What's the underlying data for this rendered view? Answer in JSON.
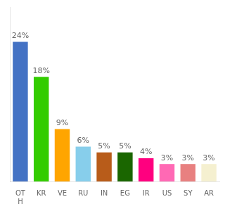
{
  "chart_data": {
    "type": "bar",
    "categories": [
      "OT\nH",
      "KR",
      "VE",
      "RU",
      "IN",
      "EG",
      "IR",
      "US",
      "SY",
      "AR"
    ],
    "values": [
      24,
      18,
      9,
      6,
      5,
      5,
      4,
      3,
      3,
      3
    ],
    "value_labels": [
      "24%",
      "18%",
      "9%",
      "6%",
      "5%",
      "5%",
      "4%",
      "3%",
      "3%",
      "3%"
    ],
    "data_labels": true,
    "colors": [
      "#4472c4",
      "#33cc00",
      "#ffa500",
      "#87ceeb",
      "#b85c1a",
      "#1a6600",
      "#ff007f",
      "#ff69b4",
      "#e88080",
      "#f5f0d0"
    ],
    "ylim": [
      0,
      30
    ],
    "grid": false,
    "tick_labels": "x"
  }
}
